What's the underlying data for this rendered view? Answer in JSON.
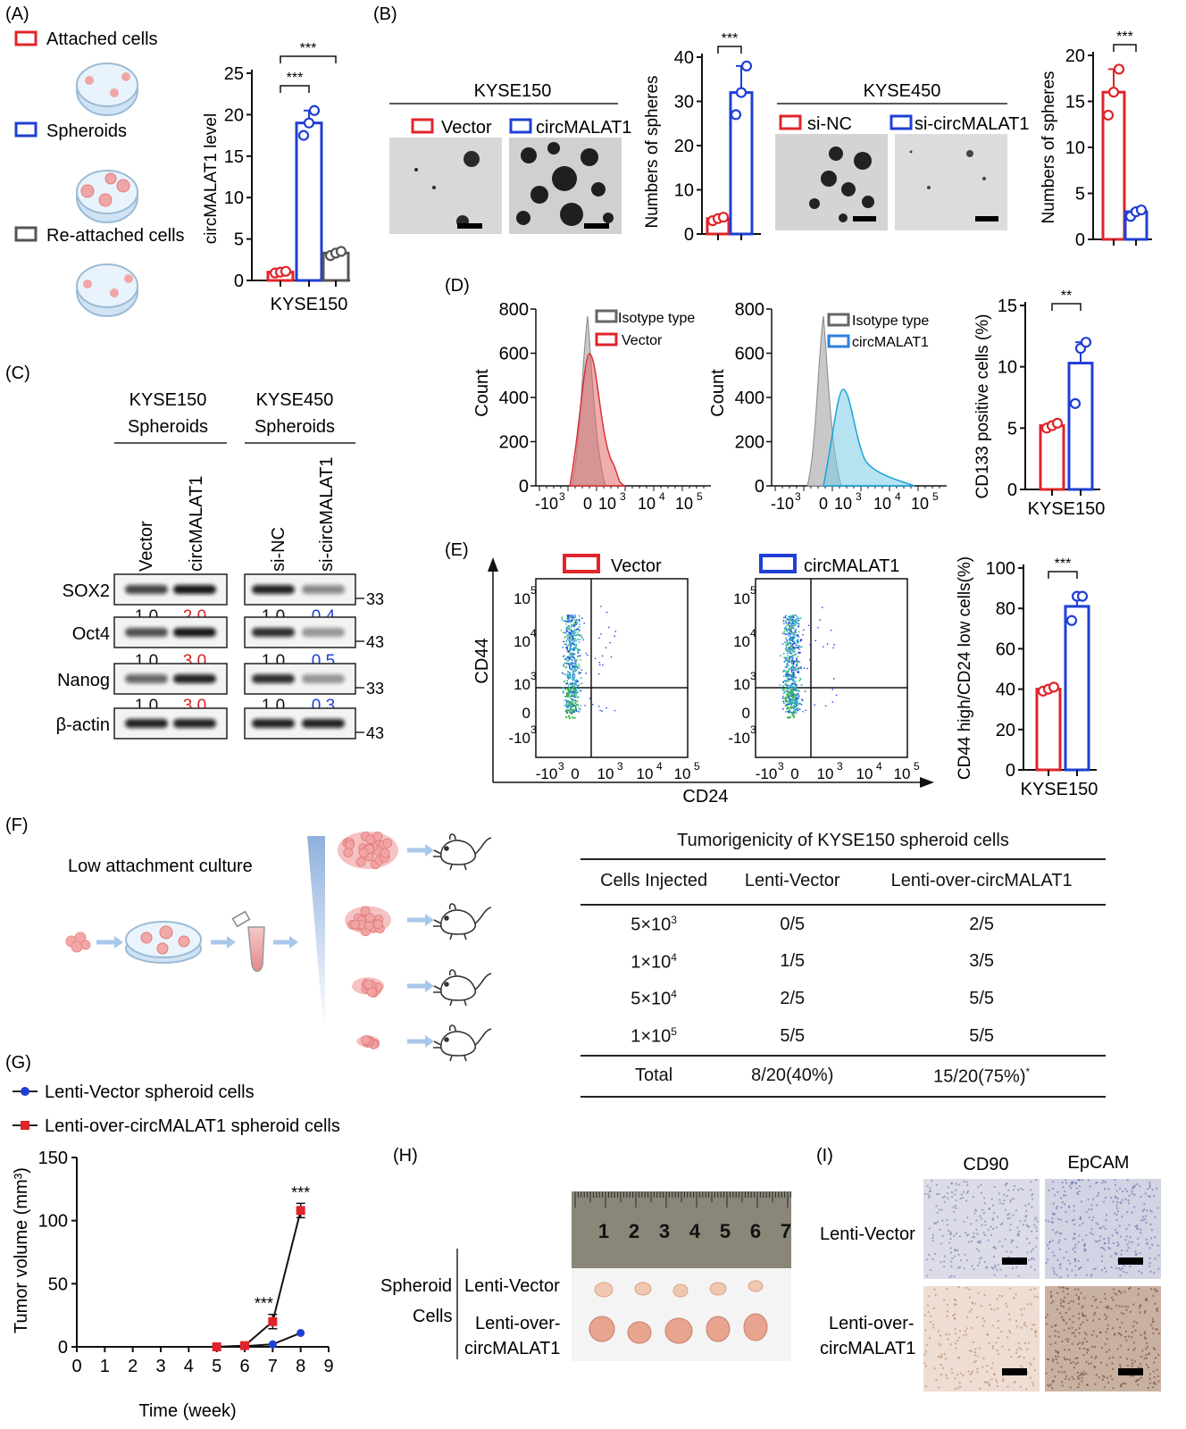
{
  "panels": {
    "A": {
      "letter": "(A)",
      "legend": [
        "Attached cells",
        "Spheroids",
        "Re-attached cells"
      ],
      "ylabel": "circMALAT1 level",
      "xlabel": "KYSE150",
      "yticks": [
        "0",
        "5",
        "10",
        "15",
        "20",
        "25"
      ],
      "sig": [
        "***",
        "***"
      ]
    },
    "B": {
      "letter": "(B)",
      "left_title": "KYSE150",
      "left_legend": [
        "Vector",
        "circMALAT1"
      ],
      "right_title": "KYSE450",
      "right_legend": [
        "si-NC",
        "si-circMALAT1"
      ],
      "ylabel": "Numbers of spheres",
      "yticks_left": [
        "0",
        "10",
        "20",
        "30",
        "40"
      ],
      "yticks_right": [
        "0",
        "5",
        "10",
        "15",
        "20"
      ],
      "sig": "***"
    },
    "C": {
      "letter": "(C)",
      "group1": [
        "KYSE150",
        "Spheroids"
      ],
      "group2": [
        "KYSE450",
        "Spheroids"
      ],
      "lanes": [
        "Vector",
        "circMALAT1",
        "si-NC",
        "si-circMALAT1"
      ],
      "rows": [
        {
          "name": "SOX2",
          "kda": "33",
          "q": [
            "1.0",
            "2.0",
            "1.0",
            "0.4"
          ]
        },
        {
          "name": "Oct4",
          "kda": "43",
          "q": [
            "1.0",
            "3.0",
            "1.0",
            "0.5"
          ]
        },
        {
          "name": "Nanog",
          "kda": "33",
          "q": [
            "1.0",
            "3.0",
            "1.0",
            "0.3"
          ]
        },
        {
          "name": "β-actin",
          "kda": "43",
          "q": [
            "",
            "",
            "",
            ""
          ]
        }
      ],
      "colors": {
        "up": "#d62020",
        "down": "#1f3fd6"
      }
    },
    "D": {
      "letter": "(D)",
      "ylabel": "Count",
      "yticks": [
        "0",
        "200",
        "400",
        "600",
        "800"
      ],
      "legend1": [
        "Isotype type",
        "Vector"
      ],
      "legend2": [
        "Isotype type",
        "circMALAT1"
      ],
      "bar_ylabel": "CD133 positive cells (%)",
      "bar_xlabel": "KYSE150",
      "bar_yticks": [
        "0",
        "5",
        "10",
        "15"
      ],
      "sig": "**"
    },
    "E": {
      "letter": "(E)",
      "legend": [
        "Vector",
        "circMALAT1"
      ],
      "xlabel": "CD24",
      "ylabel": "CD44",
      "bar_ylabel": "CD44 high/CD24 low cells(%)",
      "bar_xlabel": "KYSE150",
      "bar_yticks": [
        "0",
        "20",
        "40",
        "60",
        "80",
        "100"
      ],
      "sig": "***"
    },
    "F": {
      "letter": "(F)",
      "culture_label": "Low attachment culture",
      "table_title": "Tumorigenicity of KYSE150 spheroid cells",
      "headers": [
        "Cells Injected",
        "Lenti-Vector",
        "Lenti-over-circMALAT1"
      ],
      "rows": [
        {
          "base": "5×10",
          "exp": "3",
          "v": "0/5",
          "o": "2/5"
        },
        {
          "base": "1×10",
          "exp": "4",
          "v": "1/5",
          "o": "3/5"
        },
        {
          "base": "5×10",
          "exp": "4",
          "v": "2/5",
          "o": "5/5"
        },
        {
          "base": "1×10",
          "exp": "5",
          "v": "5/5",
          "o": "5/5"
        }
      ],
      "total": {
        "label": "Total",
        "v": "8/20(40%)",
        "o": "15/20(75%)",
        "mark": "*"
      }
    },
    "G": {
      "letter": "(G)",
      "legend": [
        "Lenti-Vector spheroid cells",
        "Lenti-over-circMALAT1 spheroid cells"
      ],
      "ylabel": "Tumor volume (mm³)",
      "xlabel": "Time (week)",
      "sig": [
        "***",
        "***"
      ]
    },
    "H": {
      "letter": "(H)",
      "side1": "Spheroid",
      "side2": "Cells",
      "row1": "Lenti-Vector",
      "row2a": "Lenti-over-",
      "row2b": "circMALAT1",
      "ruler": [
        "1",
        "2",
        "3",
        "4",
        "5",
        "6",
        "7"
      ]
    },
    "I": {
      "letter": "(I)",
      "cols": [
        "CD90",
        "EpCAM"
      ],
      "row1": "Lenti-Vector",
      "row2a": "Lenti-over-",
      "row2b": "circMALAT1"
    }
  },
  "chart_data": [
    {
      "type": "bar",
      "panel": "A",
      "categories": [
        "Attached cells",
        "Spheroids",
        "Re-attached cells"
      ],
      "values": [
        1,
        19,
        3.3
      ],
      "points": [
        [
          0.9,
          1.0,
          1.1
        ],
        [
          17.5,
          19,
          20.5
        ],
        [
          3.0,
          3.3,
          3.5
        ]
      ],
      "ylabel": "circMALAT1 level",
      "xlabel": "KYSE150",
      "ylim": [
        0,
        25
      ]
    },
    {
      "type": "bar",
      "panel": "B-left",
      "categories": [
        "Vector",
        "circMALAT1"
      ],
      "values": [
        3.5,
        32
      ],
      "points": [
        [
          3.0,
          3.5,
          3.8
        ],
        [
          27,
          32,
          38
        ]
      ],
      "ylabel": "Numbers of spheres",
      "ylim": [
        0,
        40
      ]
    },
    {
      "type": "bar",
      "panel": "B-right",
      "categories": [
        "si-NC",
        "si-circMALAT1"
      ],
      "values": [
        16,
        3
      ],
      "points": [
        [
          13.5,
          16,
          18.5
        ],
        [
          2.5,
          3,
          3.2
        ]
      ],
      "ylabel": "Numbers of spheres",
      "ylim": [
        0,
        20
      ]
    },
    {
      "type": "bar",
      "panel": "D",
      "categories": [
        "Vector",
        "circMALAT1"
      ],
      "values": [
        5.2,
        10.3
      ],
      "points": [
        [
          5.0,
          5.2,
          5.4
        ],
        [
          7.0,
          11.5,
          12.0
        ]
      ],
      "ylabel": "CD133 positive cells (%)",
      "xlabel": "KYSE150",
      "ylim": [
        0,
        15
      ]
    },
    {
      "type": "bar",
      "panel": "E",
      "categories": [
        "Vector",
        "circMALAT1"
      ],
      "values": [
        40,
        81
      ],
      "points": [
        [
          39,
          40,
          41
        ],
        [
          74,
          86,
          86
        ]
      ],
      "ylabel": "CD44 high/CD24 low cells(%)",
      "xlabel": "KYSE150",
      "ylim": [
        0,
        100
      ]
    },
    {
      "type": "line",
      "panel": "G",
      "x": [
        0,
        1,
        2,
        3,
        4,
        5,
        6,
        7,
        8
      ],
      "series": [
        {
          "name": "Lenti-Vector spheroid cells",
          "x": [
            5,
            6,
            7,
            8
          ],
          "values": [
            0,
            0.5,
            2,
            11
          ],
          "color": "#1f3fd6"
        },
        {
          "name": "Lenti-over-circMALAT1 spheroid cells",
          "x": [
            5,
            6,
            7,
            8
          ],
          "values": [
            0,
            1,
            20,
            108
          ],
          "color": "#e0242a"
        }
      ],
      "xlabel": "Time (week)",
      "ylabel": "Tumor volume (mm³)",
      "xlim": [
        0,
        9
      ],
      "ylim": [
        0,
        150
      ],
      "yticks": [
        0,
        50,
        100,
        150
      ]
    }
  ]
}
